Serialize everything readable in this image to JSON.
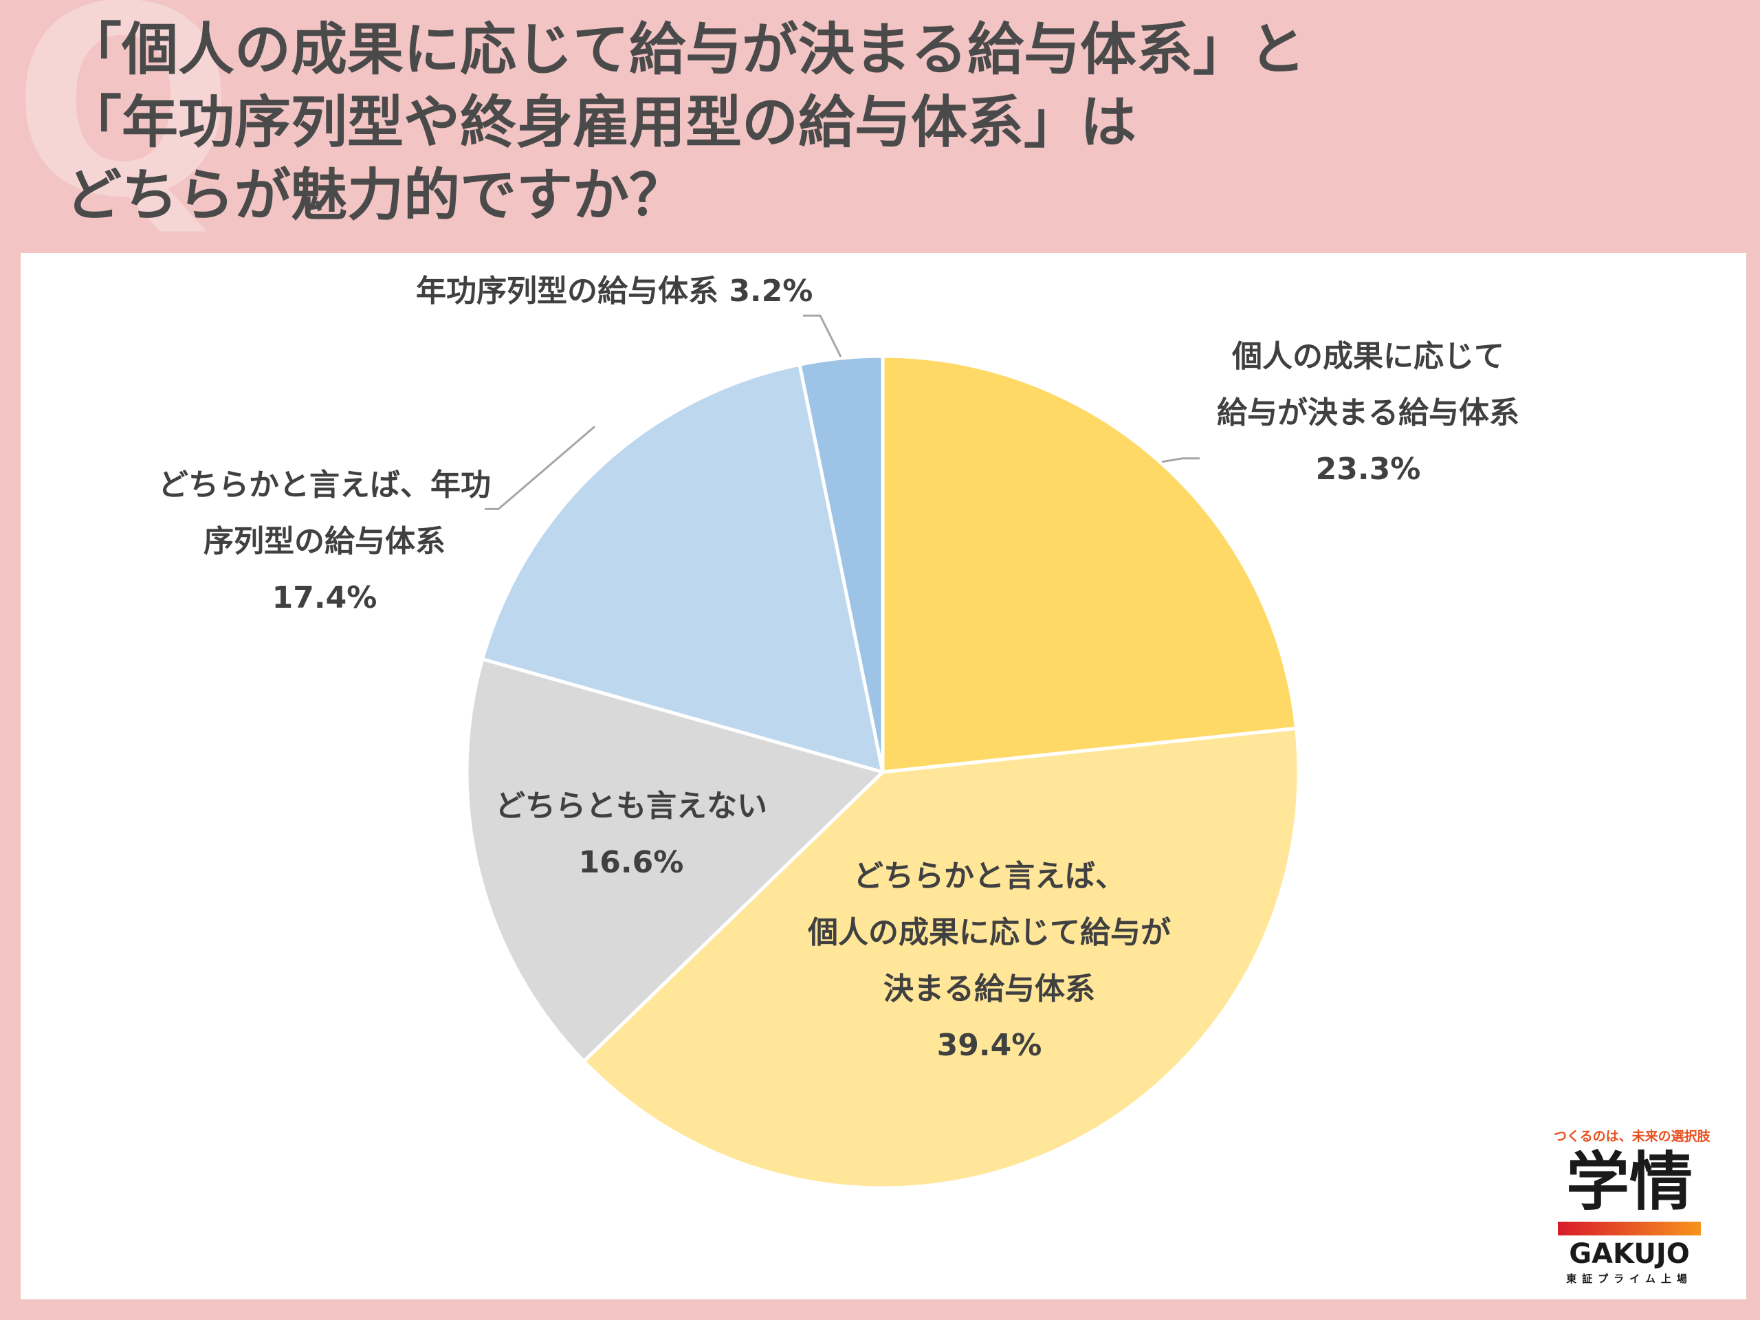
{
  "question_mark": "Q",
  "title_lines": [
    "「個人の成果に応じて給与が決まる給与体系」と",
    "「年功序列型や終身雇用型の給与体系」は",
    "どちらが魅力的ですか？"
  ],
  "chart_data": {
    "type": "pie",
    "title": "",
    "start_angle_deg": 0,
    "direction": "clockwise",
    "slices": [
      {
        "label_lines": [
          "個人の成果に応じて",
          "給与が決まる給与体系",
          "23.3%"
        ],
        "value": 23.3,
        "color": "#ffd966"
      },
      {
        "label_lines": [
          "どちらかと言えば、",
          "個人の成果に応じて給与が",
          "決まる給与体系",
          "39.4%"
        ],
        "value": 39.4,
        "color": "#ffe699"
      },
      {
        "label_lines": [
          "どちらとも言えない",
          "16.6%"
        ],
        "value": 16.6,
        "color": "#d9d9d9"
      },
      {
        "label_lines": [
          "どちらかと言えば、年功",
          "序列型の給与体系",
          "17.4%"
        ],
        "value": 17.4,
        "color": "#bdd7ee"
      },
      {
        "label_lines": [
          "年功序列型の給与体系 3.2%"
        ],
        "value": 3.2,
        "color": "#9dc3e6"
      }
    ]
  },
  "logo": {
    "tagline": "つくるのは、未来の選択肢",
    "name_jp": "学情",
    "name_en": "GAKUJO",
    "sub": "東証プライム上場"
  }
}
